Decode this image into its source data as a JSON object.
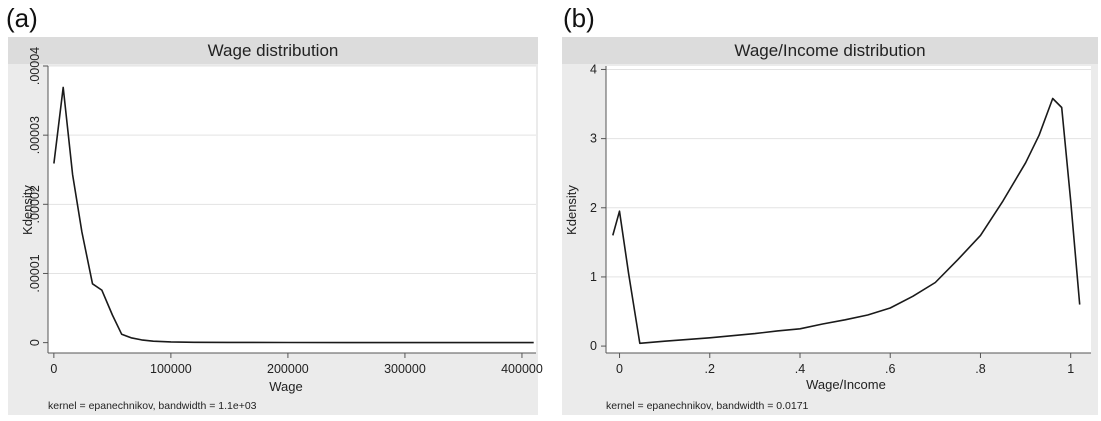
{
  "chart_data": [
    {
      "type": "line",
      "panel_label": "(a)",
      "title": "Wage distribution",
      "xlabel": "Wage",
      "ylabel": "Kdensity",
      "note": "kernel = epanechnikov, bandwidth = 1.1e+03",
      "xlim": [
        -5000,
        412000
      ],
      "ylim": [
        -1.5e-06,
        4e-05
      ],
      "x_ticks": [
        0,
        100000,
        200000,
        300000,
        400000
      ],
      "x_tick_labels": [
        "0",
        "100000",
        "200000",
        "300000",
        "400000"
      ],
      "y_ticks": [
        0,
        1e-05,
        2e-05,
        3e-05,
        4e-05
      ],
      "y_tick_labels": [
        "0",
        ".00001",
        ".00002",
        ".00003",
        ".00004"
      ],
      "y_tick_rotated": true,
      "grid": "horizontal",
      "x": [
        0,
        8000,
        16000,
        24000,
        33000,
        41000,
        50000,
        58000,
        66000,
        75000,
        85000,
        100000,
        120000,
        150000,
        200000,
        250000,
        300000,
        350000,
        410000
      ],
      "y": [
        2.59e-05,
        3.69e-05,
        2.43e-05,
        1.6e-05,
        8.5e-06,
        7.6e-06,
        4e-06,
        1.2e-06,
        7e-07,
        4e-07,
        2e-07,
        1e-07,
        5e-08,
        3e-08,
        2e-08,
        1e-08,
        1e-08,
        0,
        0
      ]
    },
    {
      "type": "line",
      "panel_label": "(b)",
      "title": "Wage/Income distribution",
      "xlabel": "Wage/Income",
      "ylabel": "Kdensity",
      "note": "kernel = epanechnikov, bandwidth = 0.0171",
      "xlim": [
        -0.03,
        1.045
      ],
      "ylim": [
        -0.1,
        4.05
      ],
      "x_ticks": [
        0,
        0.2,
        0.4,
        0.6,
        0.8,
        1
      ],
      "x_tick_labels": [
        "0",
        ".2",
        ".4",
        ".6",
        ".8",
        "1"
      ],
      "y_ticks": [
        0,
        1,
        2,
        3,
        4
      ],
      "y_tick_labels": [
        "0",
        "1",
        "2",
        "3",
        "4"
      ],
      "y_tick_rotated": false,
      "grid": "horizontal",
      "x": [
        -0.015,
        0.0,
        0.02,
        0.045,
        0.1,
        0.2,
        0.3,
        0.35,
        0.4,
        0.45,
        0.5,
        0.55,
        0.6,
        0.65,
        0.7,
        0.75,
        0.8,
        0.85,
        0.9,
        0.93,
        0.96,
        0.98,
        1.0,
        1.02
      ],
      "y": [
        1.6,
        1.95,
        1.05,
        0.04,
        0.07,
        0.12,
        0.18,
        0.22,
        0.25,
        0.32,
        0.38,
        0.45,
        0.55,
        0.72,
        0.92,
        1.25,
        1.6,
        2.1,
        2.65,
        3.05,
        3.58,
        3.45,
        2.1,
        0.6
      ]
    }
  ]
}
